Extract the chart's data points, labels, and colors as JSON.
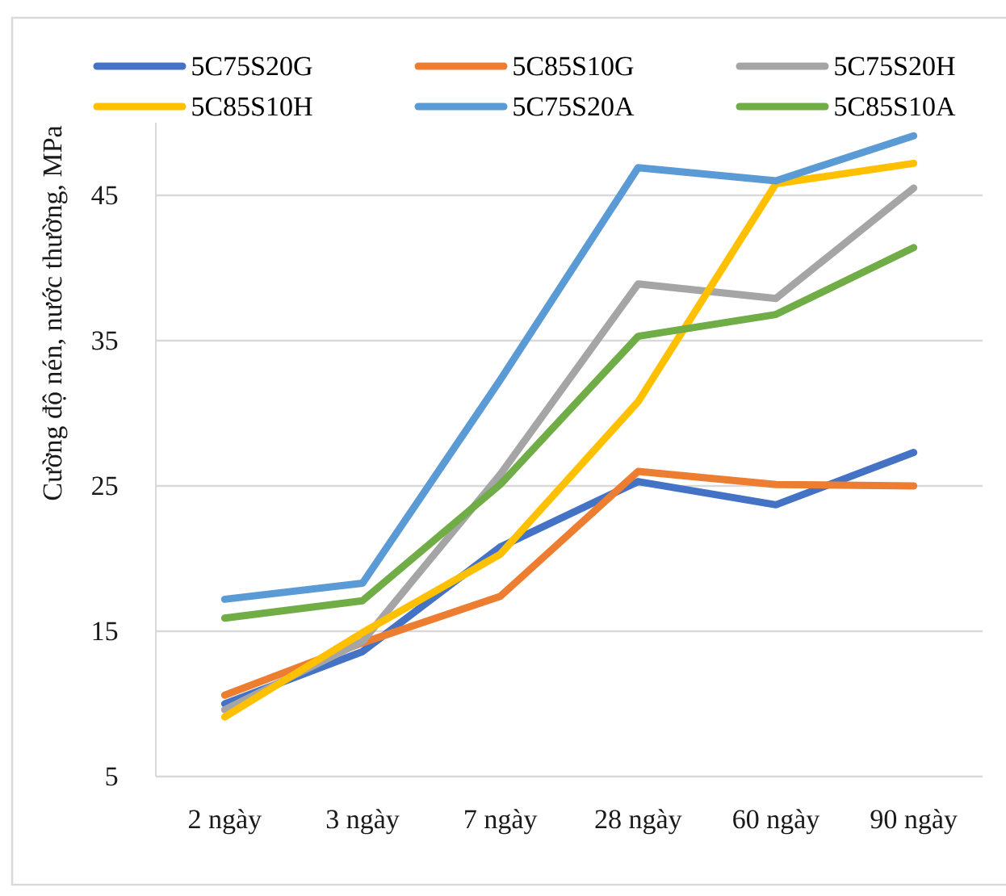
{
  "chart_data": {
    "type": "line",
    "ylabel": "Cường độ nén, nước thường, MPa",
    "categories": [
      "2 ngày",
      "3 ngày",
      "7 ngày",
      "28 ngày",
      "60 ngày",
      "90 ngày"
    ],
    "series": [
      {
        "name": "5C75S20G",
        "color": "#4472c4",
        "values": [
          10.0,
          13.6,
          20.8,
          25.3,
          23.7,
          27.3
        ]
      },
      {
        "name": "5C85S10G",
        "color": "#ed7d31",
        "values": [
          10.6,
          14.2,
          17.4,
          26.0,
          25.1,
          25.0
        ]
      },
      {
        "name": "5C75S20H",
        "color": "#a5a5a5",
        "values": [
          9.6,
          14.3,
          25.8,
          38.9,
          37.9,
          45.5
        ]
      },
      {
        "name": "5C85S10H",
        "color": "#ffc000",
        "values": [
          9.1,
          14.9,
          20.3,
          30.8,
          45.8,
          47.2
        ]
      },
      {
        "name": "5C75S20A",
        "color": "#5b9bd5",
        "values": [
          17.2,
          18.3,
          32.3,
          46.9,
          46.0,
          49.1
        ]
      },
      {
        "name": "5C85S10A",
        "color": "#70ad47",
        "values": [
          15.9,
          17.1,
          25.1,
          35.3,
          36.8,
          41.4
        ]
      }
    ],
    "ylim": [
      5,
      50
    ],
    "yticks": [
      5,
      15,
      25,
      35,
      45
    ],
    "grid": "y",
    "legend": "top"
  }
}
